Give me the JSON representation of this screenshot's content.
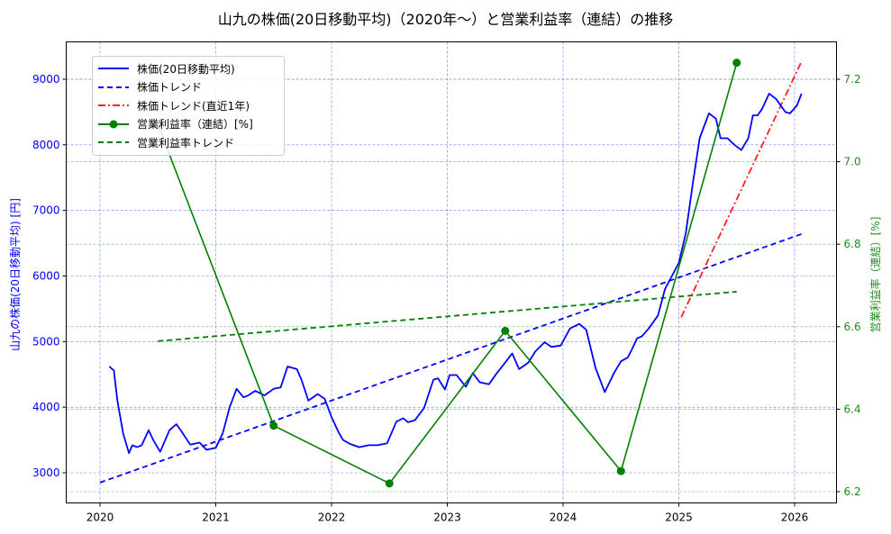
{
  "title": "山九の株価(20日移動平均)（2020年～）と営業利益率（連結）の推移",
  "axes": {
    "x_ticks": [
      "2020",
      "2021",
      "2022",
      "2023",
      "2024",
      "2025",
      "2026"
    ],
    "y_left_ticks": [
      "3000",
      "4000",
      "5000",
      "6000",
      "7000",
      "8000",
      "9000"
    ],
    "y_right_ticks": [
      "6.2",
      "6.4",
      "6.6",
      "6.8",
      "7.0",
      "7.2"
    ],
    "y_left_label": "山九の株価(20日移動平均) [円]",
    "y_right_label": "営業利益率（連結）[%]"
  },
  "legend": [
    {
      "label": "株価(20日移動平均)",
      "color": "#0000ff",
      "style": "solid"
    },
    {
      "label": "株価トレンド",
      "color": "#0000ff",
      "style": "dashed"
    },
    {
      "label": "株価トレンド(直近1年)",
      "color": "#ff0000",
      "style": "dashdot"
    },
    {
      "label": "営業利益率（連結）[%]",
      "color": "#008000",
      "style": "solid-marker"
    },
    {
      "label": "営業利益率トレンド",
      "color": "#008000",
      "style": "dashed"
    }
  ],
  "chart_data": {
    "type": "line",
    "title": "山九の株価(20日移動平均)（2020年～）と営業利益率（連結）の推移",
    "xlabel": "",
    "ylabel": "山九の株価(20日移動平均) [円]",
    "ylabel_right": "営業利益率（連結）[%]",
    "xlim": [
      2019.7,
      2026.35
    ],
    "ylim": [
      2540,
      9570
    ],
    "ylim_right": [
      6.175,
      7.29
    ],
    "grid": true,
    "legend_position": "upper left",
    "series": [
      {
        "name": "株価(20日移動平均)",
        "axis": "left",
        "color": "#0000ff",
        "x": [
          2020.08,
          2020.12,
          2020.15,
          2020.2,
          2020.25,
          2020.28,
          2020.32,
          2020.36,
          2020.42,
          2020.46,
          2020.52,
          2020.6,
          2020.66,
          2020.7,
          2020.78,
          2020.86,
          2020.92,
          2021.0,
          2021.06,
          2021.12,
          2021.18,
          2021.24,
          2021.28,
          2021.34,
          2021.42,
          2021.5,
          2021.56,
          2021.62,
          2021.7,
          2021.74,
          2021.8,
          2021.88,
          2021.94,
          2022.0,
          2022.06,
          2022.1,
          2022.16,
          2022.24,
          2022.32,
          2022.4,
          2022.48,
          2022.56,
          2022.62,
          2022.66,
          2022.72,
          2022.8,
          2022.88,
          2022.92,
          2022.98,
          2023.02,
          2023.08,
          2023.16,
          2023.22,
          2023.28,
          2023.36,
          2023.42,
          2023.5,
          2023.56,
          2023.62,
          2023.7,
          2023.76,
          2023.84,
          2023.9,
          2023.98,
          2024.06,
          2024.14,
          2024.2,
          2024.28,
          2024.36,
          2024.44,
          2024.5,
          2024.56,
          2024.6,
          2024.64,
          2024.68,
          2024.74,
          2024.82,
          2024.88,
          2024.94,
          2025.0,
          2025.06,
          2025.12,
          2025.18,
          2025.26,
          2025.32,
          2025.36,
          2025.42,
          2025.48,
          2025.54,
          2025.6,
          2025.64,
          2025.68,
          2025.72,
          2025.78,
          2025.84,
          2025.88,
          2025.92,
          2025.96,
          2026.02,
          2026.06
        ],
        "y": [
          4620,
          4560,
          4100,
          3600,
          3300,
          3420,
          3390,
          3420,
          3650,
          3500,
          3320,
          3650,
          3740,
          3640,
          3430,
          3460,
          3350,
          3380,
          3600,
          4000,
          4280,
          4150,
          4180,
          4250,
          4180,
          4280,
          4300,
          4620,
          4580,
          4420,
          4100,
          4200,
          4130,
          3850,
          3620,
          3500,
          3440,
          3390,
          3420,
          3420,
          3450,
          3780,
          3830,
          3770,
          3800,
          3990,
          4420,
          4440,
          4270,
          4490,
          4490,
          4310,
          4520,
          4380,
          4350,
          4500,
          4680,
          4820,
          4580,
          4680,
          4850,
          4990,
          4920,
          4940,
          5200,
          5270,
          5180,
          4600,
          4230,
          4520,
          4700,
          4760,
          4900,
          5050,
          5080,
          5200,
          5400,
          5800,
          6000,
          6200,
          6650,
          7400,
          8100,
          8480,
          8400,
          8100,
          8100,
          8000,
          7920,
          8100,
          8450,
          8450,
          8550,
          8780,
          8700,
          8600,
          8500,
          8480,
          8600,
          8780
        ]
      },
      {
        "name": "株価トレンド",
        "axis": "left",
        "color": "#0000ff",
        "x": [
          2020.0,
          2026.06
        ],
        "y": [
          2850,
          6640
        ]
      },
      {
        "name": "株価トレンド(直近1年)",
        "axis": "left",
        "color": "#ff0000",
        "x": [
          2025.02,
          2026.06
        ],
        "y": [
          5370,
          9270
        ]
      },
      {
        "name": "営業利益率（連結）[%]",
        "axis": "right",
        "color": "#008000",
        "x": [
          2020.5,
          2021.5,
          2022.5,
          2023.5,
          2024.5,
          2025.5
        ],
        "y": [
          7.09,
          6.36,
          6.22,
          6.59,
          6.25,
          7.24
        ]
      },
      {
        "name": "営業利益率トレンド",
        "axis": "right",
        "color": "#008000",
        "x": [
          2020.5,
          2025.5
        ],
        "y": [
          6.565,
          6.685
        ]
      }
    ]
  }
}
